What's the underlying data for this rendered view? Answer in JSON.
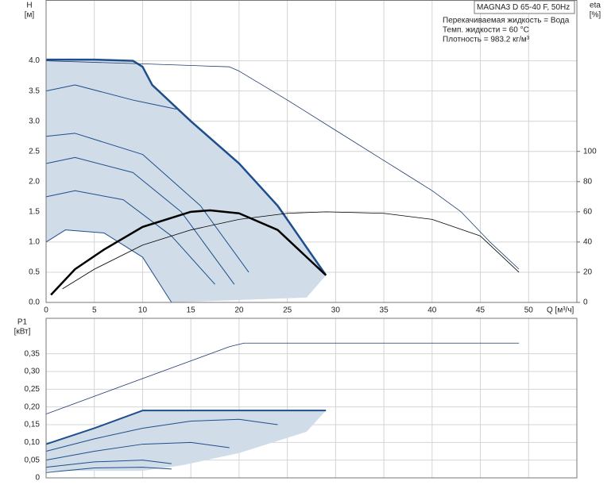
{
  "chart_data": [
    {
      "type": "line",
      "info_box": "MAGNA3 D 65-40 F, 50Hz",
      "annotations": [
        "Перекачиваемая жидкость = Вода",
        "Темп. жидкости = 60 °C",
        "Плотность = 983.2 кг/м³"
      ],
      "ylabel": [
        "H",
        "[м]"
      ],
      "y2label": [
        "eta",
        "[%]"
      ],
      "xlabel": "Q [м³/ч]",
      "xlim": [
        0,
        55
      ],
      "xticks": [
        0,
        5,
        10,
        15,
        20,
        25,
        30,
        35,
        40,
        45,
        50
      ],
      "xtick_labels": true,
      "ylim": [
        0,
        5
      ],
      "yticks": [
        {
          "value": 0,
          "label": "0.0"
        },
        0.5,
        {
          "value": 1,
          "label": "1.0"
        },
        1.5,
        {
          "value": 2,
          "label": "2.0"
        },
        2.5,
        {
          "value": 3,
          "label": "3.0"
        },
        3.5,
        {
          "value": 4,
          "label": "4.0"
        }
      ],
      "y2lim": [
        0,
        200
      ],
      "y2ticks": [
        0,
        20,
        40,
        60,
        80,
        100
      ],
      "grid": true,
      "series": [
        {
          "kind": "area",
          "color": "#d0dce8",
          "x": [
            0,
            5,
            9,
            10,
            11,
            15,
            20,
            24,
            29,
            27,
            13,
            10,
            6,
            2,
            0
          ],
          "values": [
            4.02,
            4.02,
            4.0,
            3.9,
            3.6,
            3.0,
            2.3,
            1.6,
            0.45,
            0.08,
            0,
            0.75,
            1.15,
            1.2,
            1.0
          ]
        },
        {
          "color": "#1f4e8c",
          "width": 1,
          "x": [
            0,
            2,
            6,
            10,
            13
          ],
          "values": [
            1.0,
            1.2,
            1.15,
            0.75,
            0
          ]
        },
        {
          "color": "#1f4e8c",
          "width": 1,
          "x": [
            0,
            3,
            8,
            13,
            17.5
          ],
          "values": [
            1.75,
            1.85,
            1.7,
            1.1,
            0.3
          ]
        },
        {
          "color": "#1f4e8c",
          "width": 1,
          "x": [
            0,
            3,
            9,
            14,
            19.5
          ],
          "values": [
            2.3,
            2.4,
            2.15,
            1.5,
            0.3
          ]
        },
        {
          "color": "#1f4e8c",
          "width": 1,
          "x": [
            0,
            3,
            10,
            16,
            21
          ],
          "values": [
            2.75,
            2.8,
            2.45,
            1.6,
            0.5
          ]
        },
        {
          "color": "#1f4e8c",
          "width": 1,
          "x": [
            0,
            3,
            9,
            13.5
          ],
          "values": [
            3.5,
            3.6,
            3.35,
            3.2
          ]
        },
        {
          "color": "#1f4e8c",
          "width": 2.5,
          "x": [
            0,
            5,
            9,
            10,
            11,
            15,
            20,
            24,
            29
          ],
          "values": [
            4.02,
            4.02,
            4.0,
            3.9,
            3.6,
            3.0,
            2.3,
            1.6,
            0.45
          ]
        },
        {
          "color": "#1f3a6e",
          "width": 0.8,
          "x": [
            0,
            10,
            19,
            20,
            25,
            30,
            35,
            40,
            43,
            46,
            49
          ],
          "values": [
            4.0,
            3.95,
            3.9,
            3.83,
            3.35,
            2.85,
            2.35,
            1.85,
            1.5,
            1.0,
            0.55
          ]
        },
        {
          "color": "#000000",
          "width": 2.5,
          "axis": "y2",
          "x": [
            0.5,
            3,
            6,
            10,
            15,
            17,
            20,
            24,
            29
          ],
          "values": [
            5,
            22,
            35,
            50,
            60,
            61,
            59,
            48,
            18
          ]
        },
        {
          "color": "#000000",
          "width": 0.8,
          "axis": "y2",
          "x": [
            1.7,
            5,
            10,
            15,
            20,
            25,
            29,
            35,
            40,
            45,
            49
          ],
          "values": [
            9,
            22,
            38,
            48,
            55,
            59,
            60,
            59,
            55,
            44,
            20
          ]
        }
      ]
    },
    {
      "type": "line",
      "ylabel": [
        "P1",
        "[кВт]"
      ],
      "xlim": [
        0,
        55
      ],
      "xticks": [
        0,
        5,
        10,
        15,
        20,
        25,
        30,
        35,
        40,
        45,
        50
      ],
      "xtick_labels": false,
      "ylim": [
        0,
        0.45
      ],
      "yticks": [
        0,
        {
          "value": 0.05,
          "label": "0,05"
        },
        {
          "value": 0.1,
          "label": "0,10"
        },
        {
          "value": 0.15,
          "label": "0,15"
        },
        {
          "value": 0.2,
          "label": "0,20"
        },
        {
          "value": 0.25,
          "label": "0,25"
        },
        {
          "value": 0.3,
          "label": "0,30"
        },
        {
          "value": 0.35,
          "label": "0,35"
        }
      ],
      "grid": true,
      "series": [
        {
          "kind": "area",
          "color": "#d0dce8",
          "x": [
            0,
            10,
            20,
            29,
            27,
            20,
            14,
            10,
            5,
            0
          ],
          "values": [
            0.095,
            0.19,
            0.19,
            0.19,
            0.13,
            0.07,
            0.035,
            0.02,
            0.02,
            0.02
          ]
        },
        {
          "color": "#1f4e8c",
          "width": 1,
          "x": [
            0,
            5,
            10,
            13
          ],
          "values": [
            0.015,
            0.028,
            0.03,
            0.025
          ]
        },
        {
          "color": "#1f4e8c",
          "width": 1,
          "x": [
            0,
            5,
            10,
            13
          ],
          "values": [
            0.03,
            0.045,
            0.05,
            0.04
          ]
        },
        {
          "color": "#1f4e8c",
          "width": 1,
          "x": [
            0,
            5,
            10,
            15,
            19
          ],
          "values": [
            0.05,
            0.075,
            0.095,
            0.1,
            0.085
          ]
        },
        {
          "color": "#1f4e8c",
          "width": 1,
          "x": [
            0,
            5,
            10,
            15,
            20,
            24
          ],
          "values": [
            0.075,
            0.11,
            0.14,
            0.16,
            0.165,
            0.15
          ]
        },
        {
          "color": "#1f4e8c",
          "width": 2,
          "x": [
            0,
            5,
            10,
            20,
            29
          ],
          "values": [
            0.095,
            0.14,
            0.19,
            0.19,
            0.19
          ]
        },
        {
          "color": "#1f3a6e",
          "width": 0.8,
          "x": [
            0,
            5,
            10,
            15,
            19,
            20.5,
            30,
            40,
            49
          ],
          "values": [
            0.18,
            0.23,
            0.28,
            0.33,
            0.37,
            0.38,
            0.38,
            0.38,
            0.38
          ]
        }
      ]
    }
  ]
}
